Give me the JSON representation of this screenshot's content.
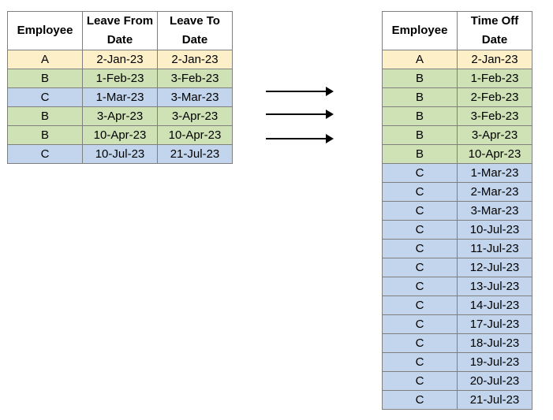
{
  "colors": {
    "A": "#fdf0c9",
    "B": "#cfe2b6",
    "C": "#c2d5ec"
  },
  "left_table": {
    "headers": [
      "Employee",
      "Leave From Date",
      "Leave To Date"
    ],
    "rows": [
      {
        "employee": "A",
        "from": "2-Jan-23",
        "to": "2-Jan-23"
      },
      {
        "employee": "B",
        "from": "1-Feb-23",
        "to": "3-Feb-23"
      },
      {
        "employee": "C",
        "from": "1-Mar-23",
        "to": "3-Mar-23"
      },
      {
        "employee": "B",
        "from": "3-Apr-23",
        "to": "3-Apr-23"
      },
      {
        "employee": "B",
        "from": "10-Apr-23",
        "to": "10-Apr-23"
      },
      {
        "employee": "C",
        "from": "10-Jul-23",
        "to": "21-Jul-23"
      }
    ]
  },
  "right_table": {
    "headers": [
      "Employee",
      "Time Off Date"
    ],
    "rows": [
      {
        "employee": "A",
        "date": "2-Jan-23"
      },
      {
        "employee": "B",
        "date": "1-Feb-23"
      },
      {
        "employee": "B",
        "date": "2-Feb-23"
      },
      {
        "employee": "B",
        "date": "3-Feb-23"
      },
      {
        "employee": "B",
        "date": "3-Apr-23"
      },
      {
        "employee": "B",
        "date": "10-Apr-23"
      },
      {
        "employee": "C",
        "date": "1-Mar-23"
      },
      {
        "employee": "C",
        "date": "2-Mar-23"
      },
      {
        "employee": "C",
        "date": "3-Mar-23"
      },
      {
        "employee": "C",
        "date": "10-Jul-23"
      },
      {
        "employee": "C",
        "date": "11-Jul-23"
      },
      {
        "employee": "C",
        "date": "12-Jul-23"
      },
      {
        "employee": "C",
        "date": "13-Jul-23"
      },
      {
        "employee": "C",
        "date": "14-Jul-23"
      },
      {
        "employee": "C",
        "date": "17-Jul-23"
      },
      {
        "employee": "C",
        "date": "18-Jul-23"
      },
      {
        "employee": "C",
        "date": "19-Jul-23"
      },
      {
        "employee": "C",
        "date": "20-Jul-23"
      },
      {
        "employee": "C",
        "date": "21-Jul-23"
      }
    ]
  },
  "arrows": [
    {
      "icon": "right-arrow-icon"
    },
    {
      "icon": "right-arrow-icon"
    },
    {
      "icon": "right-arrow-icon"
    }
  ]
}
